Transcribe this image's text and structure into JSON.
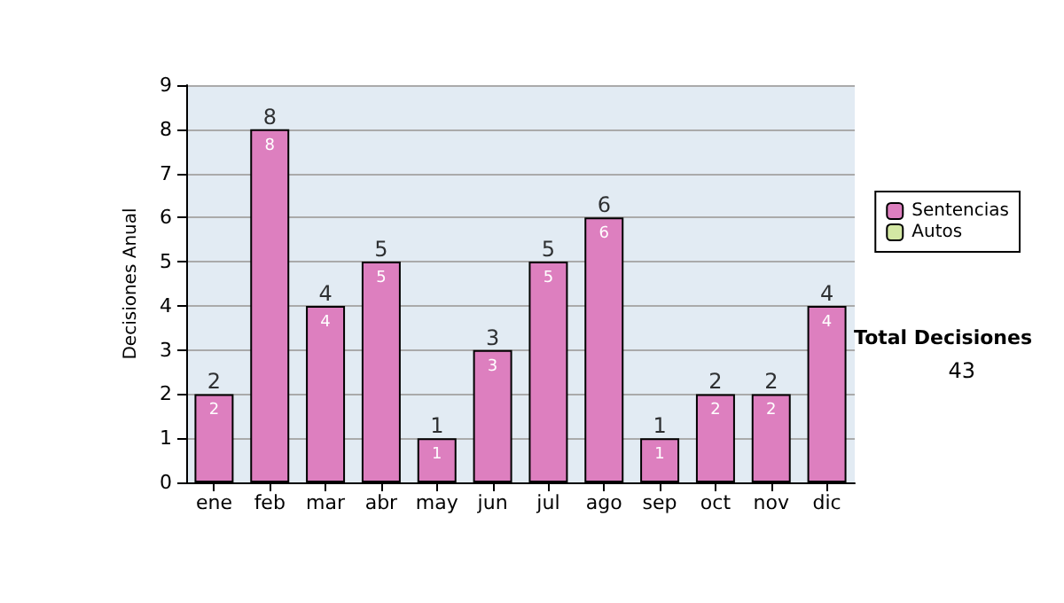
{
  "chart_data": {
    "type": "bar",
    "ylabel": "Decisiones Anual",
    "categories": [
      "ene",
      "feb",
      "mar",
      "abr",
      "may",
      "jun",
      "jul",
      "ago",
      "sep",
      "oct",
      "nov",
      "dic"
    ],
    "series": [
      {
        "name": "Sentencias",
        "color": "#dd7fbf",
        "values": [
          2,
          8,
          4,
          5,
          1,
          3,
          5,
          6,
          1,
          2,
          2,
          4
        ],
        "value_labels": [
          "2",
          "8",
          "4",
          "5",
          "1",
          "3",
          "5",
          "6",
          "1",
          "2",
          "2",
          "4"
        ]
      },
      {
        "name": "Autos",
        "color": "#d4e8a4",
        "values": [
          0,
          0,
          0,
          0,
          0,
          0,
          0,
          0,
          0,
          0,
          0,
          0
        ]
      }
    ],
    "stacked": true,
    "totals": [
      "2",
      "8",
      "4",
      "5",
      "1",
      "3",
      "5",
      "6",
      "1",
      "2",
      "2",
      "4"
    ],
    "ylim": [
      0,
      9
    ],
    "yticks": [
      0,
      1,
      2,
      3,
      4,
      5,
      6,
      7,
      8,
      9
    ],
    "grid": "y",
    "legend": "right",
    "annotations": [
      "Total Decisiones",
      "43"
    ]
  }
}
